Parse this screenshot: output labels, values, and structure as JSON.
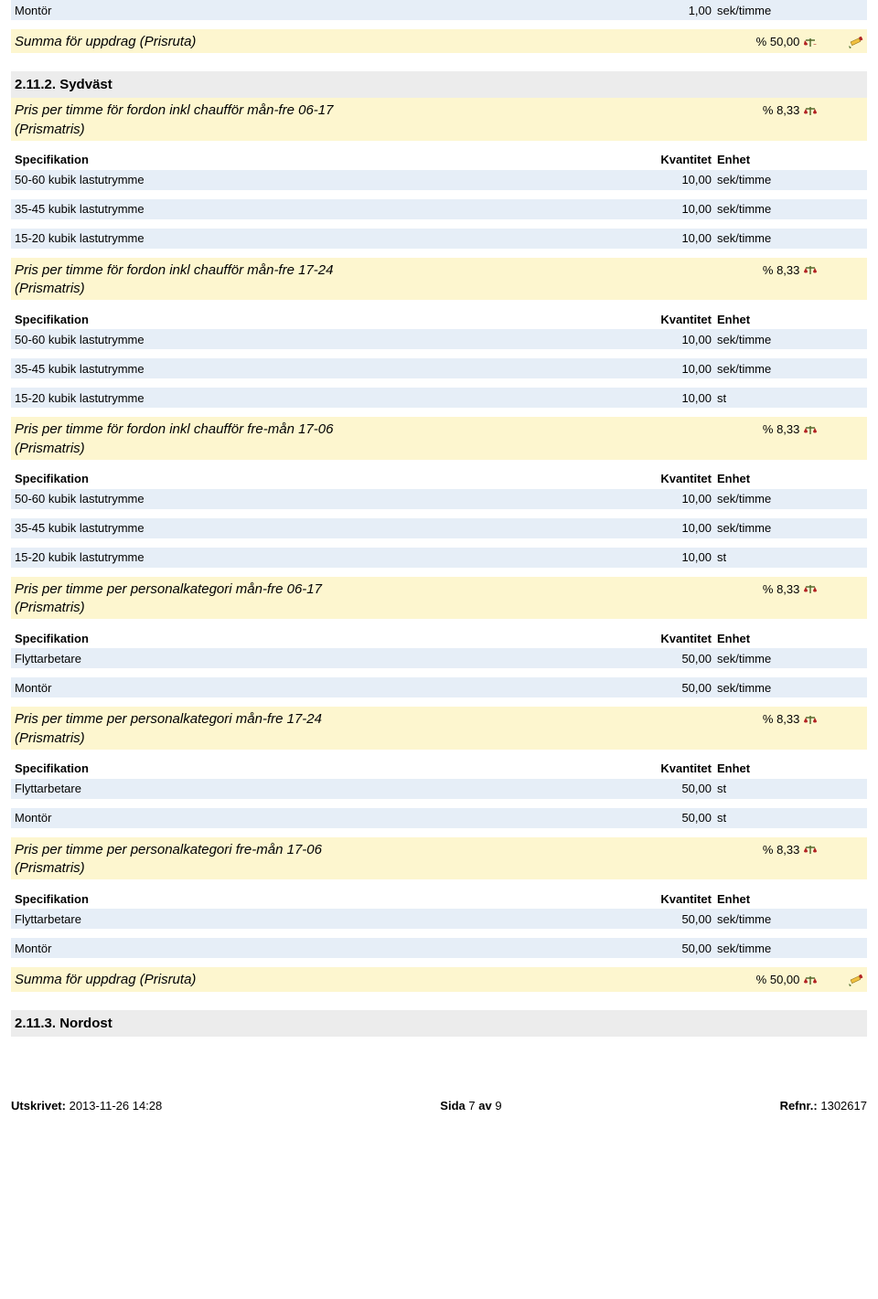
{
  "colors": {
    "row_blue": "#e6eef7",
    "row_yellow": "#fdf6cf",
    "row_grey": "#ececec",
    "scale_bar": "#556b2f",
    "scale_pan": "#b22222",
    "pencil_body": "#f0c040",
    "pencil_tip": "#4a6a2a"
  },
  "top": {
    "spec": "Montör",
    "qty": "1,00",
    "unit": "sek/timme"
  },
  "summa1": {
    "title": "Summa för uppdrag (Prisruta)",
    "pct": "% 50,00"
  },
  "section2": {
    "heading": "2.11.2. Sydväst",
    "groups": [
      {
        "title": "Pris per timme för fordon inkl chaufför mån-fre 06-17",
        "subtitle": "(Prismatris)",
        "pct": "% 8,33",
        "cols": {
          "spec": "Specifikation",
          "qty": "Kvantitet",
          "unit": "Enhet"
        },
        "rows": [
          {
            "spec": "50-60 kubik lastutrymme",
            "qty": "10,00",
            "unit": "sek/timme"
          },
          {
            "spec": "35-45 kubik lastutrymme",
            "qty": "10,00",
            "unit": "sek/timme"
          },
          {
            "spec": "15-20 kubik lastutrymme",
            "qty": "10,00",
            "unit": "sek/timme"
          }
        ]
      },
      {
        "title": "Pris per timme för fordon inkl chaufför mån-fre 17-24",
        "subtitle": "(Prismatris)",
        "pct": "% 8,33",
        "cols": {
          "spec": "Specifikation",
          "qty": "Kvantitet",
          "unit": "Enhet"
        },
        "rows": [
          {
            "spec": "50-60 kubik lastutrymme",
            "qty": "10,00",
            "unit": "sek/timme"
          },
          {
            "spec": "35-45 kubik lastutrymme",
            "qty": "10,00",
            "unit": "sek/timme"
          },
          {
            "spec": "15-20 kubik lastutrymme",
            "qty": "10,00",
            "unit": "st"
          }
        ]
      },
      {
        "title": "Pris per timme för fordon inkl chaufför fre-mån 17-06",
        "subtitle": "(Prismatris)",
        "pct": "% 8,33",
        "cols": {
          "spec": "Specifikation",
          "qty": "Kvantitet",
          "unit": "Enhet"
        },
        "rows": [
          {
            "spec": "50-60 kubik lastutrymme",
            "qty": "10,00",
            "unit": "sek/timme"
          },
          {
            "spec": "35-45 kubik lastutrymme",
            "qty": "10,00",
            "unit": "sek/timme"
          },
          {
            "spec": "15-20 kubik lastutrymme",
            "qty": "10,00",
            "unit": "st"
          }
        ]
      },
      {
        "title": "Pris per timme per personalkategori mån-fre 06-17",
        "subtitle": "(Prismatris)",
        "pct": "% 8,33",
        "cols": {
          "spec": "Specifikation",
          "qty": "Kvantitet",
          "unit": "Enhet"
        },
        "rows": [
          {
            "spec": "Flyttarbetare",
            "qty": "50,00",
            "unit": "sek/timme"
          },
          {
            "spec": "Montör",
            "qty": "50,00",
            "unit": "sek/timme"
          }
        ]
      },
      {
        "title": "Pris per timme per personalkategori mån-fre 17-24",
        "subtitle": "(Prismatris)",
        "pct": "% 8,33",
        "cols": {
          "spec": "Specifikation",
          "qty": "Kvantitet",
          "unit": "Enhet"
        },
        "rows": [
          {
            "spec": "Flyttarbetare",
            "qty": "50,00",
            "unit": "st"
          },
          {
            "spec": "Montör",
            "qty": "50,00",
            "unit": "st"
          }
        ]
      },
      {
        "title": "Pris per timme per personalkategori fre-mån 17-06",
        "subtitle": "(Prismatris)",
        "pct": "% 8,33",
        "cols": {
          "spec": "Specifikation",
          "qty": "Kvantitet",
          "unit": "Enhet"
        },
        "rows": [
          {
            "spec": "Flyttarbetare",
            "qty": "50,00",
            "unit": "sek/timme"
          },
          {
            "spec": "Montör",
            "qty": "50,00",
            "unit": "sek/timme"
          }
        ]
      }
    ]
  },
  "summa2": {
    "title": "Summa för uppdrag (Prisruta)",
    "pct": "% 50,00"
  },
  "section3": {
    "heading": "2.11.3. Nordost"
  },
  "footer": {
    "printed_label": "Utskrivet:",
    "printed_value": "2013-11-26 14:28",
    "page_label": "Sida",
    "page_current": "7",
    "page_sep": "av",
    "page_total": "9",
    "ref_label": "Refnr.:",
    "ref_value": "1302617"
  }
}
